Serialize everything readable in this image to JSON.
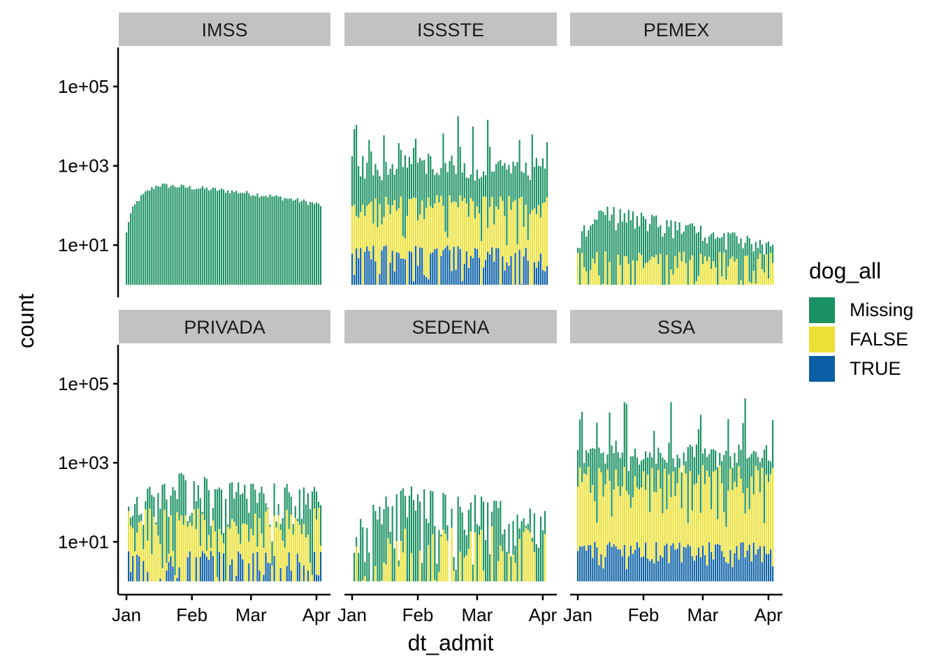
{
  "chart_data": {
    "type": "bar",
    "stacked": true,
    "facets": [
      "IMSS",
      "ISSSTE",
      "PEMEX",
      "PRIVADA",
      "SEDENA",
      "SSA"
    ],
    "xlabel": "dt_admit",
    "ylabel": "count",
    "y_scale": "log10",
    "y_ticks": [
      "1e+01",
      "1e+03",
      "1e+05"
    ],
    "x_ticks": [
      "Jan",
      "Feb",
      "Mar",
      "Apr"
    ],
    "x_range": [
      "2021-01-01",
      "2021-04-03"
    ],
    "legend": {
      "title": "dog_all",
      "position": "right",
      "items": [
        {
          "label": "Missing",
          "color": "#1a9162"
        },
        {
          "label": "FALSE",
          "color": "#ebe034"
        },
        {
          "label": "TRUE",
          "color": "#0b5fa5"
        }
      ]
    },
    "series_approx_daily_totals": [
      {
        "facet": "IMSS",
        "Missing": "≈20 (Jan 1) rising to ≈330 (late Jan), declining to ≈100 (early Apr)",
        "FALSE": "0",
        "TRUE": "0"
      },
      {
        "facet": "ISSSTE",
        "Missing": "up to ≈14000 per day, typically 300–8000",
        "FALSE": "≈5–180",
        "TRUE": "≈1–10"
      },
      {
        "facet": "PEMEX",
        "Missing": "≈2–90 (peak mid Jan)",
        "FALSE": "≈1–7",
        "TRUE": "0"
      },
      {
        "facet": "PRIVADA",
        "Missing": "≈3–800 (peak late Jan)",
        "FALSE": "≈1–80",
        "TRUE": "≈1–6"
      },
      {
        "facet": "SEDENA",
        "Missing": "≈1–380 (peak early Feb)",
        "FALSE": "≈1–25",
        "TRUE": "0"
      },
      {
        "facet": "SSA",
        "Missing": "up to ≈60000 per day, typically 300–40000",
        "FALSE": "≈20–900",
        "TRUE": "≈2–10"
      }
    ]
  }
}
